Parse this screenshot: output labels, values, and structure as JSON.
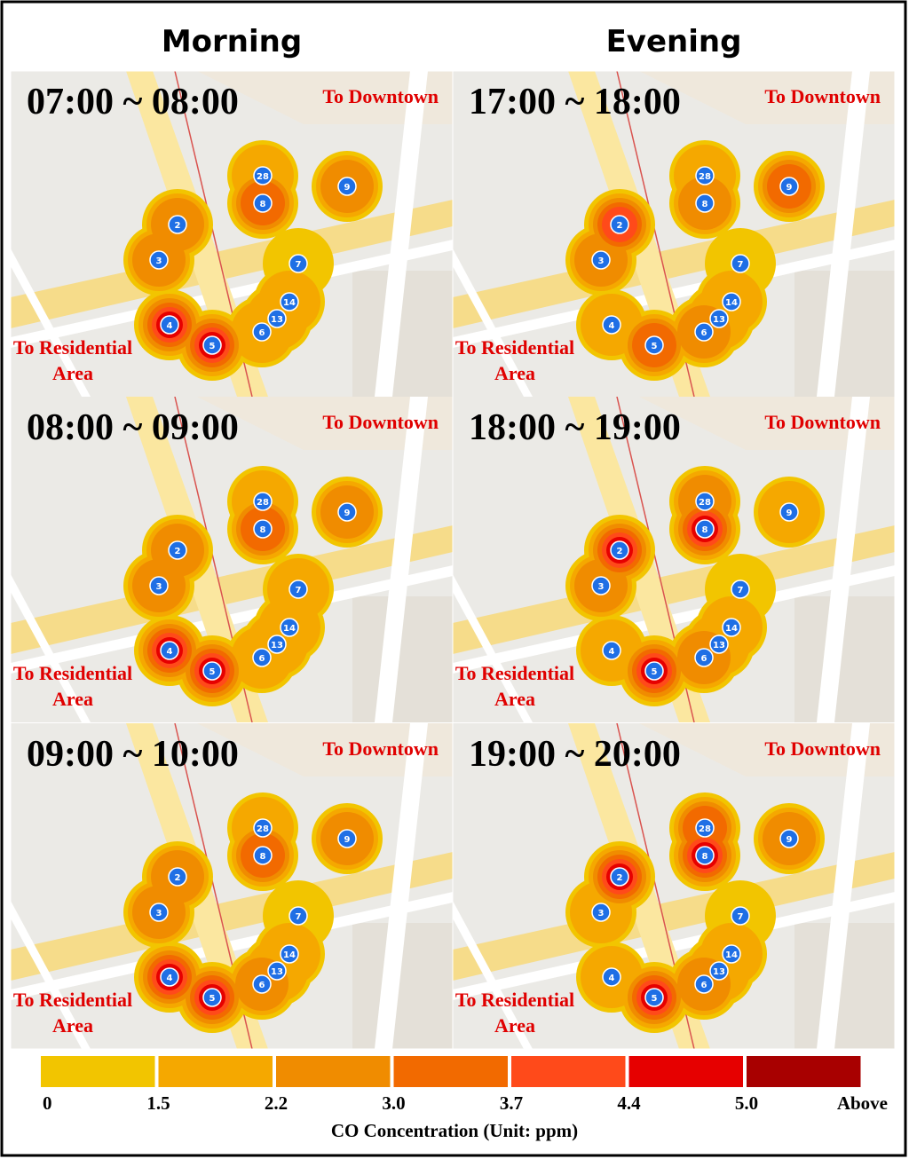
{
  "columns": [
    {
      "title": "Morning",
      "panels": [
        {
          "time": "07:00 ~ 08:00",
          "to_downtown": "To Downtown",
          "to_residential": [
            "To Residential",
            "Area"
          ],
          "nodes": [
            {
              "label": "2",
              "co": 2.5
            },
            {
              "label": "3",
              "co": 2.2
            },
            {
              "label": "4",
              "co": 5.2
            },
            {
              "label": "5",
              "co": 4.5
            },
            {
              "label": "6",
              "co": 1.8
            },
            {
              "label": "13",
              "co": 1.6
            },
            {
              "label": "14",
              "co": 1.5
            },
            {
              "label": "7",
              "co": 1.2
            },
            {
              "label": "8",
              "co": 3.5
            },
            {
              "label": "28",
              "co": 1.5
            },
            {
              "label": "9",
              "co": 2.2
            }
          ]
        },
        {
          "time": "08:00 ~ 09:00",
          "to_downtown": "To Downtown",
          "to_residential": [
            "To Residential",
            "Area"
          ],
          "nodes": [
            {
              "label": "2",
              "co": 2.5
            },
            {
              "label": "3",
              "co": 2.2
            },
            {
              "label": "4",
              "co": 5.2
            },
            {
              "label": "5",
              "co": 5.2
            },
            {
              "label": "6",
              "co": 2.0
            },
            {
              "label": "13",
              "co": 1.8
            },
            {
              "label": "14",
              "co": 1.6
            },
            {
              "label": "7",
              "co": 1.5
            },
            {
              "label": "8",
              "co": 3.5
            },
            {
              "label": "28",
              "co": 1.5
            },
            {
              "label": "9",
              "co": 2.5
            }
          ]
        },
        {
          "time": "09:00 ~ 10:00",
          "to_downtown": "To Downtown",
          "to_residential": [
            "To Residential",
            "Area"
          ],
          "nodes": [
            {
              "label": "2",
              "co": 2.3
            },
            {
              "label": "3",
              "co": 2.2
            },
            {
              "label": "4",
              "co": 5.5
            },
            {
              "label": "5",
              "co": 5.5
            },
            {
              "label": "6",
              "co": 2.2
            },
            {
              "label": "13",
              "co": 1.8
            },
            {
              "label": "14",
              "co": 1.6
            },
            {
              "label": "7",
              "co": 1.2
            },
            {
              "label": "8",
              "co": 3.2
            },
            {
              "label": "28",
              "co": 1.5
            },
            {
              "label": "9",
              "co": 2.4
            }
          ]
        }
      ]
    },
    {
      "title": "Evening",
      "panels": [
        {
          "time": "17:00 ~ 18:00",
          "to_downtown": "To Downtown",
          "to_residential": [
            "To Residential",
            "Area"
          ],
          "nodes": [
            {
              "label": "2",
              "co": 3.8
            },
            {
              "label": "3",
              "co": 2.2
            },
            {
              "label": "4",
              "co": 1.5
            },
            {
              "label": "5",
              "co": 3.2
            },
            {
              "label": "6",
              "co": 2.2
            },
            {
              "label": "13",
              "co": 1.8
            },
            {
              "label": "14",
              "co": 1.6
            },
            {
              "label": "7",
              "co": 1.2
            },
            {
              "label": "8",
              "co": 2.5
            },
            {
              "label": "28",
              "co": 1.5
            },
            {
              "label": "9",
              "co": 3.0
            }
          ]
        },
        {
          "time": "18:00 ~ 19:00",
          "to_downtown": "To Downtown",
          "to_residential": [
            "To Residential",
            "Area"
          ],
          "nodes": [
            {
              "label": "2",
              "co": 5.2
            },
            {
              "label": "3",
              "co": 2.2
            },
            {
              "label": "4",
              "co": 1.6
            },
            {
              "label": "5",
              "co": 4.6
            },
            {
              "label": "6",
              "co": 2.2
            },
            {
              "label": "13",
              "co": 1.8
            },
            {
              "label": "14",
              "co": 1.6
            },
            {
              "label": "7",
              "co": 1.2
            },
            {
              "label": "8",
              "co": 5.1
            },
            {
              "label": "28",
              "co": 2.5
            },
            {
              "label": "9",
              "co": 1.8
            }
          ]
        },
        {
          "time": "19:00 ~ 20:00",
          "to_downtown": "To Downtown",
          "to_residential": [
            "To Residential",
            "Area"
          ],
          "nodes": [
            {
              "label": "2",
              "co": 5.0
            },
            {
              "label": "3",
              "co": 2.0
            },
            {
              "label": "4",
              "co": 1.5
            },
            {
              "label": "5",
              "co": 4.6
            },
            {
              "label": "6",
              "co": 2.2
            },
            {
              "label": "13",
              "co": 1.8
            },
            {
              "label": "14",
              "co": 1.6
            },
            {
              "label": "7",
              "co": 1.2
            },
            {
              "label": "8",
              "co": 5.2
            },
            {
              "label": "28",
              "co": 3.0
            },
            {
              "label": "9",
              "co": 2.2
            }
          ]
        }
      ]
    }
  ],
  "legend": {
    "title": "CO Concentration (Unit: ppm)",
    "ticks": [
      0,
      1.5,
      2.2,
      {
        "value": 3,
        "label": "3.0"
      },
      3.7,
      4.4,
      {
        "value": 5,
        "label": "5.0"
      }
    ],
    "above": "Above",
    "colors": [
      "#f2c500",
      "#f5a800",
      "#f08c00",
      "#f26a00",
      "#ff4a1a",
      "#e60000",
      "#a80000"
    ]
  }
}
